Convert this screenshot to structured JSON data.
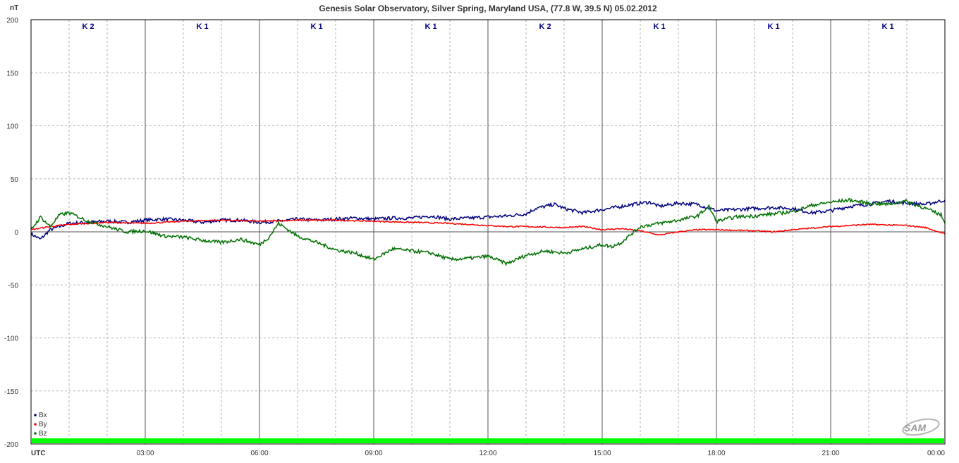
{
  "chart_data": {
    "type": "line",
    "title": "Genesis Solar Observatory, Silver Spring, Maryland USA, (77.8 W, 39.5 N)  05.02.2012",
    "ylabel": "nT",
    "xlabel": "UTC",
    "ylim": [
      -200,
      200
    ],
    "xlim_hours": [
      0,
      24
    ],
    "y_ticks": [
      "200",
      "150",
      "100",
      "50",
      "0",
      "-50",
      "-100",
      "-150",
      "-200"
    ],
    "x_ticks": [
      "03:00",
      "06:00",
      "09:00",
      "12:00",
      "15:00",
      "18:00",
      "21:00",
      "00:00"
    ],
    "grid": true,
    "legend_position": "bottom-left",
    "k_indices": [
      "K 2",
      "K 1",
      "K 1",
      "K 1",
      "K 2",
      "K 1",
      "K 1",
      "K 1"
    ],
    "quality_bar_color": "#00ff00",
    "series": [
      {
        "name": "Bx",
        "color": "#000080",
        "x": [
          0,
          0.25,
          0.5,
          1,
          1.5,
          2,
          2.5,
          3,
          3.5,
          4,
          4.5,
          5,
          5.5,
          6,
          6.5,
          7,
          7.5,
          8,
          8.5,
          9,
          9.5,
          10,
          10.5,
          11,
          11.5,
          12,
          12.5,
          13,
          13.25,
          13.5,
          13.75,
          14,
          14.5,
          15,
          15.5,
          16,
          16.25,
          16.5,
          17,
          17.5,
          18,
          18.5,
          19,
          19.5,
          20,
          20.5,
          21,
          21.5,
          22,
          22.5,
          23,
          23.5,
          24
        ],
        "values": [
          -2,
          -7,
          2,
          8,
          9,
          10,
          9,
          11,
          12,
          11,
          9,
          11,
          11,
          9,
          10,
          12,
          11,
          12,
          13,
          12,
          13,
          13,
          15,
          12,
          13,
          14,
          15,
          17,
          22,
          24,
          26,
          22,
          18,
          21,
          24,
          27,
          28,
          24,
          27,
          26,
          20,
          21,
          22,
          23,
          22,
          18,
          20,
          24,
          26,
          29,
          27,
          26,
          30
        ]
      },
      {
        "name": "By",
        "color": "#ff0000",
        "x": [
          0,
          0.5,
          1,
          1.5,
          2,
          3,
          4,
          5,
          6,
          7,
          8,
          9,
          10,
          11,
          12,
          12.5,
          13,
          14,
          14.5,
          15,
          15.5,
          16,
          16.5,
          17,
          17.5,
          18,
          19,
          19.5,
          20,
          21,
          22,
          23,
          23.5,
          24
        ],
        "values": [
          2,
          5,
          7,
          8,
          9,
          8,
          10,
          11,
          10,
          11,
          11,
          10,
          9,
          8,
          6,
          5,
          5,
          4,
          5,
          2,
          3,
          1,
          -3,
          0,
          2,
          2,
          1,
          0,
          2,
          5,
          7,
          6,
          4,
          -2
        ]
      },
      {
        "name": "Bz",
        "color": "#007000",
        "x": [
          0,
          0.25,
          0.5,
          0.75,
          1,
          1.5,
          2,
          2.5,
          3,
          3.5,
          4,
          4.5,
          5,
          5.5,
          6,
          6.25,
          6.5,
          7,
          7.5,
          8,
          8.5,
          9,
          9.5,
          10,
          10.5,
          11,
          11.5,
          12,
          12.5,
          13,
          13.5,
          14,
          14.5,
          15,
          15.25,
          15.5,
          16,
          16.5,
          17,
          17.5,
          17.8,
          18,
          18.5,
          19,
          19.5,
          20,
          20.5,
          21,
          21.5,
          22,
          22.5,
          23,
          23.5,
          23.9,
          24
        ],
        "values": [
          2,
          14,
          5,
          16,
          18,
          10,
          5,
          0,
          1,
          -4,
          -5,
          -8,
          -10,
          -7,
          -12,
          -5,
          8,
          -4,
          -10,
          -17,
          -20,
          -26,
          -16,
          -18,
          -20,
          -26,
          -25,
          -23,
          -30,
          -22,
          -18,
          -20,
          -16,
          -12,
          -14,
          -10,
          5,
          8,
          11,
          15,
          24,
          10,
          14,
          15,
          17,
          19,
          25,
          28,
          30,
          27,
          26,
          29,
          22,
          16,
          8
        ]
      }
    ]
  },
  "logo": {
    "text": "SAM"
  }
}
